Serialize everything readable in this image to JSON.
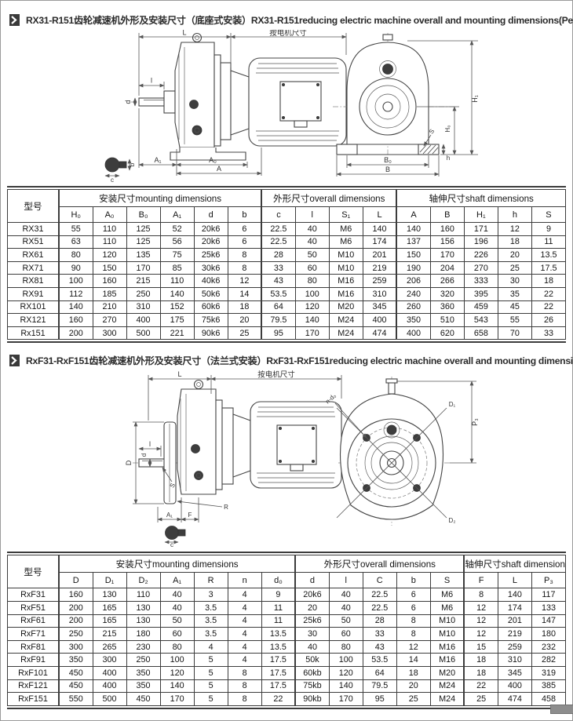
{
  "page": {
    "section1_title": "RX31-R151齿轮减速机外形及安装尺寸（底座式安装）RX31-R151reducing electric machine overall and mounting dimensions(Pedestal-style)",
    "section2_title": "RxF31-RxF151齿轮减速机外形及安装尺寸（法兰式安装）RxF31-RxF151reducing electric machine overall and mounting dimensions(Flange-style)",
    "colors": {
      "line": "#444444",
      "table_border": "#3c3c3c",
      "text": "#222222"
    }
  },
  "drawing1": {
    "labels": {
      "L": "L",
      "motor_dim": "按电机尺寸",
      "l": "l",
      "d": "d",
      "A1": "A₁",
      "A0": "A₀",
      "A": "A",
      "b": "b",
      "c": "c",
      "H1": "H₁",
      "H0": "H₀",
      "h": "h",
      "S": "S",
      "B0": "B₀",
      "B": "B"
    }
  },
  "drawing2": {
    "labels": {
      "L": "L",
      "motor_dim": "按电机尺寸",
      "l": "l",
      "d": "d",
      "D": "D",
      "S": "S",
      "R": "R",
      "A1": "A₁",
      "F": "F",
      "c": "c",
      "P3": "P₃",
      "nd0": "n-d₀",
      "D1": "D₁",
      "D2": "D₂"
    }
  },
  "table1": {
    "model_header": "型号",
    "groups": [
      {
        "label": "安装尺寸mounting dimensions",
        "span": 6
      },
      {
        "label": "外形尺寸overall dimensions",
        "span": 4
      },
      {
        "label": "轴伸尺寸shaft dimensions",
        "span": 5
      }
    ],
    "columns": [
      "H₀",
      "A₀",
      "B₀",
      "A₁",
      "d",
      "b",
      "c",
      "l",
      "S₁",
      "L",
      "A",
      "B",
      "H₁",
      "h",
      "S"
    ],
    "rows": [
      {
        "model": "RX31",
        "values": [
          "55",
          "110",
          "125",
          "52",
          "20k6",
          "6",
          "22.5",
          "40",
          "M6",
          "140",
          "140",
          "160",
          "171",
          "12",
          "9"
        ]
      },
      {
        "model": "RX51",
        "values": [
          "63",
          "110",
          "125",
          "56",
          "20k6",
          "6",
          "22.5",
          "40",
          "M6",
          "174",
          "137",
          "156",
          "196",
          "18",
          "11"
        ]
      },
      {
        "model": "RX61",
        "values": [
          "80",
          "120",
          "135",
          "75",
          "25k6",
          "8",
          "28",
          "50",
          "M10",
          "201",
          "150",
          "170",
          "226",
          "20",
          "13.5"
        ]
      },
      {
        "model": "RX71",
        "values": [
          "90",
          "150",
          "170",
          "85",
          "30k6",
          "8",
          "33",
          "60",
          "M10",
          "219",
          "190",
          "204",
          "270",
          "25",
          "17.5"
        ]
      },
      {
        "model": "RX81",
        "values": [
          "100",
          "160",
          "215",
          "110",
          "40k6",
          "12",
          "43",
          "80",
          "M16",
          "259",
          "206",
          "266",
          "333",
          "30",
          "18"
        ]
      },
      {
        "model": "RX91",
        "values": [
          "112",
          "185",
          "250",
          "140",
          "50k6",
          "14",
          "53.5",
          "100",
          "M16",
          "310",
          "240",
          "320",
          "395",
          "35",
          "22"
        ]
      },
      {
        "model": "RX101",
        "values": [
          "140",
          "210",
          "310",
          "152",
          "60k6",
          "18",
          "64",
          "120",
          "M20",
          "345",
          "260",
          "360",
          "459",
          "45",
          "22"
        ]
      },
      {
        "model": "RX121",
        "values": [
          "160",
          "270",
          "400",
          "175",
          "75k6",
          "20",
          "79.5",
          "140",
          "M24",
          "400",
          "350",
          "510",
          "543",
          "55",
          "26"
        ]
      },
      {
        "model": "Rx151",
        "values": [
          "200",
          "300",
          "500",
          "221",
          "90k6",
          "25",
          "95",
          "170",
          "M24",
          "474",
          "400",
          "620",
          "658",
          "70",
          "33"
        ]
      }
    ]
  },
  "table2": {
    "model_header": "型号",
    "groups": [
      {
        "label": "安装尺寸mounting dimensions",
        "span": 7
      },
      {
        "label": "外形尺寸overall dimensions",
        "span": 5
      },
      {
        "label": "轴伸尺寸shaft dimensions",
        "span": 3
      }
    ],
    "columns": [
      "D",
      "D₁",
      "D₂",
      "A₁",
      "R",
      "n",
      "d₀",
      "d",
      "l",
      "C",
      "b",
      "S",
      "F",
      "L",
      "P₃"
    ],
    "rows": [
      {
        "model": "RxF31",
        "values": [
          "160",
          "130",
          "110",
          "40",
          "3",
          "4",
          "9",
          "20k6",
          "40",
          "22.5",
          "6",
          "M6",
          "8",
          "140",
          "117"
        ]
      },
      {
        "model": "RxF51",
        "values": [
          "200",
          "165",
          "130",
          "40",
          "3.5",
          "4",
          "11",
          "20",
          "40",
          "22.5",
          "6",
          "M6",
          "12",
          "174",
          "133"
        ]
      },
      {
        "model": "RxF61",
        "values": [
          "200",
          "165",
          "130",
          "50",
          "3.5",
          "4",
          "11",
          "25k6",
          "50",
          "28",
          "8",
          "M10",
          "12",
          "201",
          "147"
        ]
      },
      {
        "model": "RxF71",
        "values": [
          "250",
          "215",
          "180",
          "60",
          "3.5",
          "4",
          "13.5",
          "30",
          "60",
          "33",
          "8",
          "M10",
          "12",
          "219",
          "180"
        ]
      },
      {
        "model": "RxF81",
        "values": [
          "300",
          "265",
          "230",
          "80",
          "4",
          "4",
          "13.5",
          "40",
          "80",
          "43",
          "12",
          "M16",
          "15",
          "259",
          "232"
        ]
      },
      {
        "model": "RxF91",
        "values": [
          "350",
          "300",
          "250",
          "100",
          "5",
          "4",
          "17.5",
          "50k",
          "100",
          "53.5",
          "14",
          "M16",
          "18",
          "310",
          "282"
        ]
      },
      {
        "model": "RxF101",
        "values": [
          "450",
          "400",
          "350",
          "120",
          "5",
          "8",
          "17.5",
          "60kb",
          "120",
          "64",
          "18",
          "M20",
          "18",
          "345",
          "319"
        ]
      },
      {
        "model": "RxF121",
        "values": [
          "450",
          "400",
          "350",
          "140",
          "5",
          "8",
          "17.5",
          "75kb",
          "140",
          "79.5",
          "20",
          "M24",
          "22",
          "400",
          "385"
        ]
      },
      {
        "model": "RxF151",
        "values": [
          "550",
          "500",
          "450",
          "170",
          "5",
          "8",
          "22",
          "90kb",
          "170",
          "95",
          "25",
          "M24",
          "25",
          "474",
          "458"
        ]
      }
    ]
  }
}
